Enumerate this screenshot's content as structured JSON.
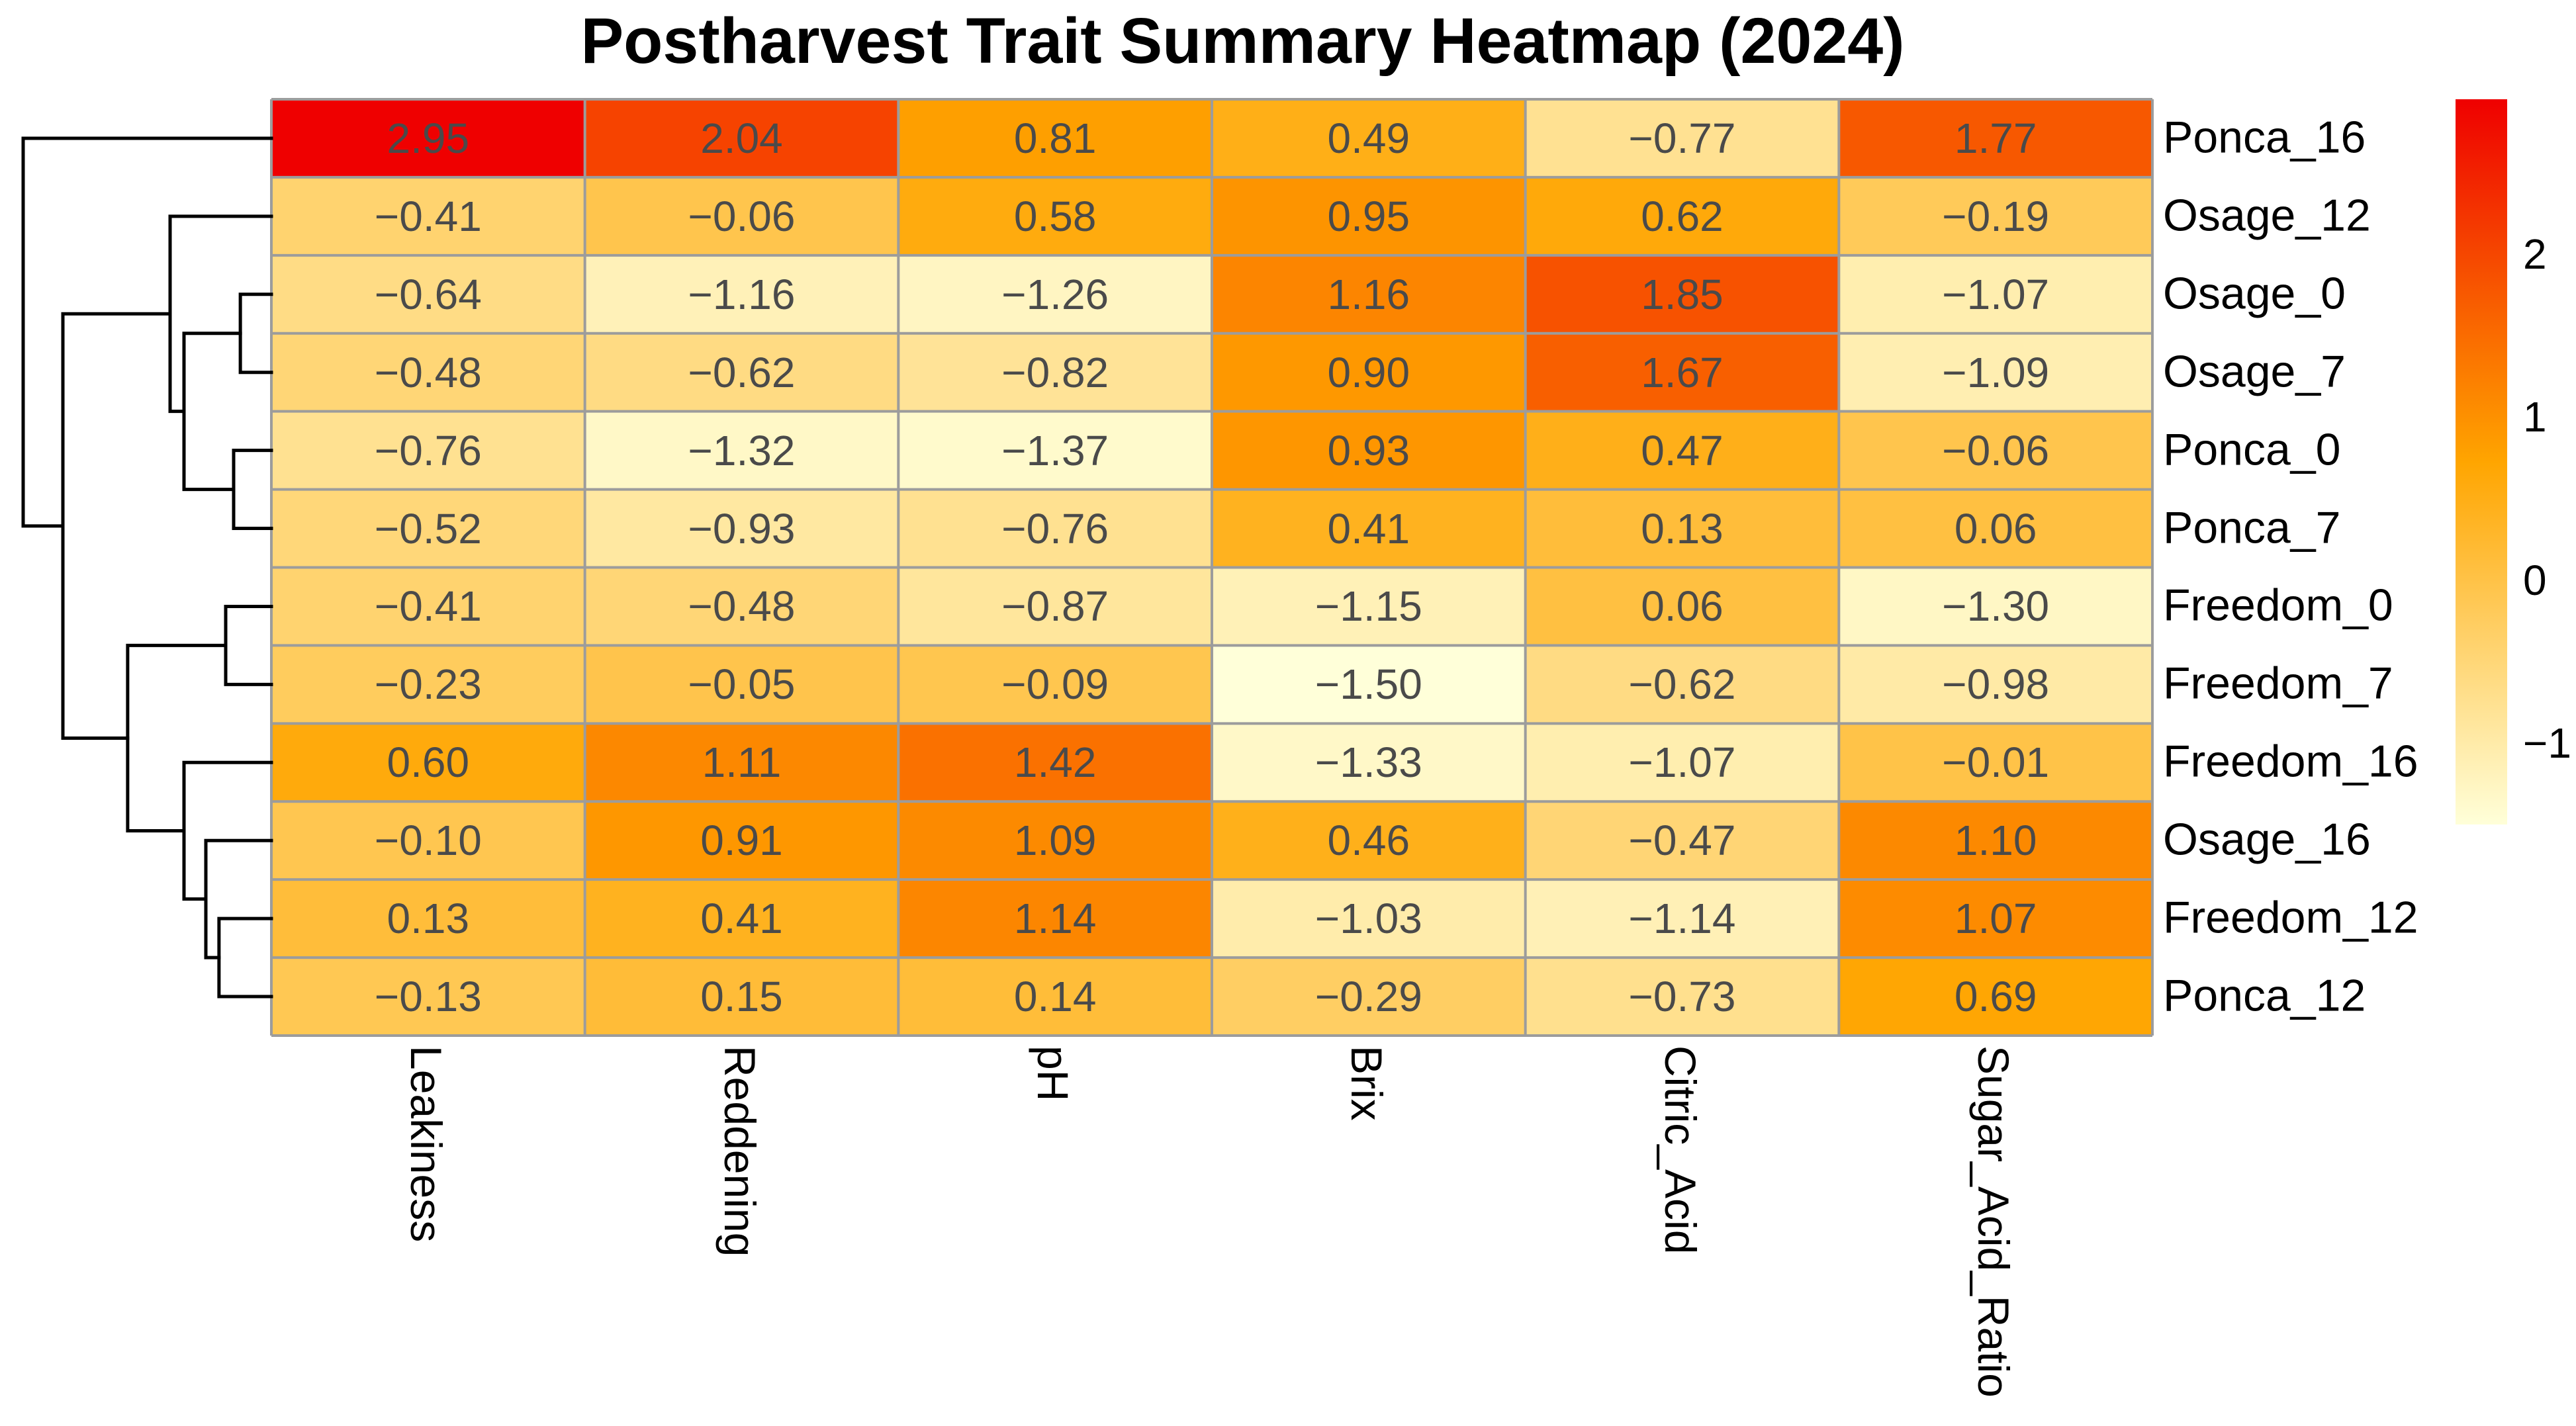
{
  "header": {
    "title": "Postharvest Trait Summary Heatmap (2024)"
  },
  "chart_data": {
    "type": "heatmap",
    "title": "Postharvest Trait Summary Heatmap (2024)",
    "rows": [
      "Ponca_16",
      "Osage_12",
      "Osage_0",
      "Osage_7",
      "Ponca_0",
      "Ponca_7",
      "Freedom_0",
      "Freedom_7",
      "Freedom_16",
      "Osage_16",
      "Freedom_12",
      "Ponca_12"
    ],
    "columns": [
      "Leakiness",
      "Reddening",
      "pH",
      "Brix",
      "Citric_Acid",
      "Sugar_Acid_Ratio"
    ],
    "values": [
      [
        2.95,
        2.04,
        0.81,
        0.49,
        -0.77,
        1.77
      ],
      [
        -0.41,
        -0.06,
        0.58,
        0.95,
        0.62,
        -0.19
      ],
      [
        -0.64,
        -1.16,
        -1.26,
        1.16,
        1.85,
        -1.07
      ],
      [
        -0.48,
        -0.62,
        -0.82,
        0.9,
        1.67,
        -1.09
      ],
      [
        -0.76,
        -1.32,
        -1.37,
        0.93,
        0.47,
        -0.06
      ],
      [
        -0.52,
        -0.93,
        -0.76,
        0.41,
        0.13,
        0.06
      ],
      [
        -0.41,
        -0.48,
        -0.87,
        -1.15,
        0.06,
        -1.3
      ],
      [
        -0.23,
        -0.05,
        -0.09,
        -1.5,
        -0.62,
        -0.98
      ],
      [
        0.6,
        1.11,
        1.42,
        -1.33,
        -1.07,
        -0.01
      ],
      [
        -0.1,
        0.91,
        1.09,
        0.46,
        -0.47,
        1.1
      ],
      [
        0.13,
        0.41,
        1.14,
        -1.03,
        -1.14,
        1.07
      ],
      [
        -0.13,
        0.15,
        0.14,
        -0.29,
        -0.73,
        0.69
      ]
    ],
    "cell_label_decimals": 2,
    "vmin": -1.5,
    "vmax": 2.95,
    "colormap_stops": [
      "#FFFFD9",
      "#FFA500",
      "#EF0000"
    ],
    "grid_line_color": "#9C9C9C",
    "cell_text_color": "#4A4A4A",
    "legend": {
      "position": "right",
      "ticks": [
        {
          "value": 2,
          "label": "2"
        },
        {
          "value": 1,
          "label": "1"
        },
        {
          "value": 0,
          "label": "0"
        },
        {
          "value": -1,
          "label": "−1"
        }
      ]
    },
    "row_dendrogram": {
      "h": 1.0,
      "children": [
        {
          "leaf": "Ponca_16"
        },
        {
          "h": 0.84,
          "children": [
            {
              "h": 0.408,
              "children": [
                {
                  "leaf": "Osage_12"
                },
                {
                  "h": 0.352,
                  "children": [
                    {
                      "h": 0.125,
                      "children": [
                        {
                          "leaf": "Osage_0"
                        },
                        {
                          "leaf": "Osage_7"
                        }
                      ]
                    },
                    {
                      "h": 0.152,
                      "children": [
                        {
                          "leaf": "Ponca_0"
                        },
                        {
                          "leaf": "Ponca_7"
                        }
                      ]
                    }
                  ]
                }
              ]
            },
            {
              "h": 0.579,
              "children": [
                {
                  "h": 0.184,
                  "children": [
                    {
                      "leaf": "Freedom_0"
                    },
                    {
                      "leaf": "Freedom_7"
                    }
                  ]
                },
                {
                  "h": 0.352,
                  "children": [
                    {
                      "leaf": "Freedom_16"
                    },
                    {
                      "h": 0.264,
                      "children": [
                        {
                          "leaf": "Osage_16"
                        },
                        {
                          "h": 0.211,
                          "children": [
                            {
                              "leaf": "Freedom_12"
                            },
                            {
                              "leaf": "Ponca_12"
                            }
                          ]
                        }
                      ]
                    }
                  ]
                }
              ]
            }
          ]
        }
      ]
    }
  }
}
